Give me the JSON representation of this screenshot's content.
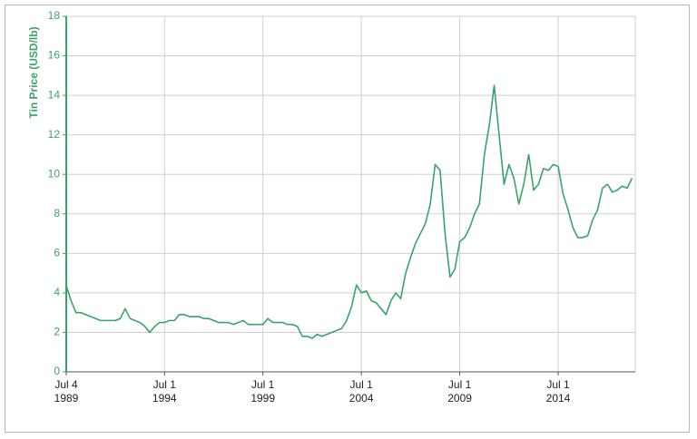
{
  "chart_data": {
    "type": "line",
    "y_label": "Tin Price (USD/lb)",
    "x": [
      "1989-07",
      "1989-10",
      "1990-01",
      "1990-04",
      "1990-07",
      "1990-10",
      "1991-01",
      "1991-04",
      "1991-07",
      "1991-10",
      "1992-01",
      "1992-04",
      "1992-07",
      "1992-10",
      "1993-01",
      "1993-04",
      "1993-07",
      "1993-10",
      "1994-01",
      "1994-04",
      "1994-07",
      "1994-10",
      "1995-01",
      "1995-04",
      "1995-07",
      "1995-10",
      "1996-01",
      "1996-04",
      "1996-07",
      "1996-10",
      "1997-01",
      "1997-04",
      "1997-07",
      "1997-10",
      "1998-01",
      "1998-04",
      "1998-07",
      "1998-10",
      "1999-01",
      "1999-04",
      "1999-07",
      "1999-10",
      "2000-01",
      "2000-04",
      "2000-07",
      "2000-10",
      "2001-01",
      "2001-04",
      "2001-07",
      "2001-10",
      "2002-01",
      "2002-04",
      "2002-07",
      "2002-10",
      "2003-01",
      "2003-04",
      "2003-07",
      "2003-10",
      "2004-01",
      "2004-04",
      "2004-07",
      "2004-10",
      "2005-01",
      "2005-04",
      "2005-07",
      "2005-10",
      "2006-01",
      "2006-04",
      "2006-07",
      "2006-10",
      "2007-01",
      "2007-04",
      "2007-07",
      "2007-10",
      "2008-01",
      "2008-04",
      "2008-07",
      "2008-10",
      "2009-01",
      "2009-04",
      "2009-07",
      "2009-10",
      "2010-01",
      "2010-04",
      "2010-07",
      "2010-10",
      "2011-01",
      "2011-04",
      "2011-07",
      "2011-10",
      "2012-01",
      "2012-04",
      "2012-07",
      "2012-10",
      "2013-01",
      "2013-04",
      "2013-07",
      "2013-10",
      "2014-01",
      "2014-04",
      "2014-07",
      "2014-10",
      "2015-01",
      "2015-04",
      "2015-07",
      "2015-10",
      "2016-01",
      "2016-04",
      "2016-07",
      "2016-10",
      "2017-01",
      "2017-04",
      "2017-07",
      "2017-10",
      "2018-01",
      "2018-04"
    ],
    "series": [
      {
        "name": "Tin Price",
        "color": "#3aa36a",
        "values": [
          4.4,
          3.6,
          3.0,
          3.0,
          2.9,
          2.8,
          2.7,
          2.6,
          2.6,
          2.6,
          2.6,
          2.7,
          3.2,
          2.7,
          2.6,
          2.5,
          2.3,
          2.0,
          2.3,
          2.5,
          2.5,
          2.6,
          2.6,
          2.9,
          2.9,
          2.8,
          2.8,
          2.8,
          2.7,
          2.7,
          2.6,
          2.5,
          2.5,
          2.5,
          2.4,
          2.5,
          2.6,
          2.4,
          2.4,
          2.4,
          2.4,
          2.7,
          2.5,
          2.5,
          2.5,
          2.4,
          2.4,
          2.3,
          1.8,
          1.8,
          1.7,
          1.9,
          1.8,
          1.9,
          2.0,
          2.1,
          2.2,
          2.6,
          3.3,
          4.4,
          4.0,
          4.1,
          3.6,
          3.5,
          3.2,
          2.9,
          3.6,
          4.0,
          3.7,
          5.0,
          5.8,
          6.5,
          7.0,
          7.5,
          8.5,
          10.5,
          10.2,
          7.0,
          4.8,
          5.2,
          6.6,
          6.8,
          7.3,
          8.0,
          8.5,
          11.0,
          12.5,
          14.5,
          12.0,
          9.5,
          10.5,
          9.8,
          8.5,
          9.5,
          11.0,
          9.2,
          9.5,
          10.3,
          10.2,
          10.5,
          10.4,
          9.0,
          8.2,
          7.3,
          6.8,
          6.8,
          6.9,
          7.7,
          8.2,
          9.3,
          9.5,
          9.1,
          9.2,
          9.4,
          9.3,
          9.8
        ]
      }
    ],
    "xlim": [
      "1989-07-04",
      "2018-06-01"
    ],
    "xticks": [
      {
        "value": "1989-07-04",
        "label": "Jul 4 1989"
      },
      {
        "value": "1994-07-01",
        "label": "Jul 1 1994"
      },
      {
        "value": "1999-07-01",
        "label": "Jul 1 1999"
      },
      {
        "value": "2004-07-01",
        "label": "Jul 1 2004"
      },
      {
        "value": "2009-07-01",
        "label": "Jul 1 2009"
      },
      {
        "value": "2014-07-01",
        "label": "Jul 1 2014"
      }
    ],
    "ylim": [
      0,
      18
    ],
    "yticks": [
      0,
      2,
      4,
      6,
      8,
      10,
      12,
      14,
      16,
      18
    ],
    "grid": true
  }
}
